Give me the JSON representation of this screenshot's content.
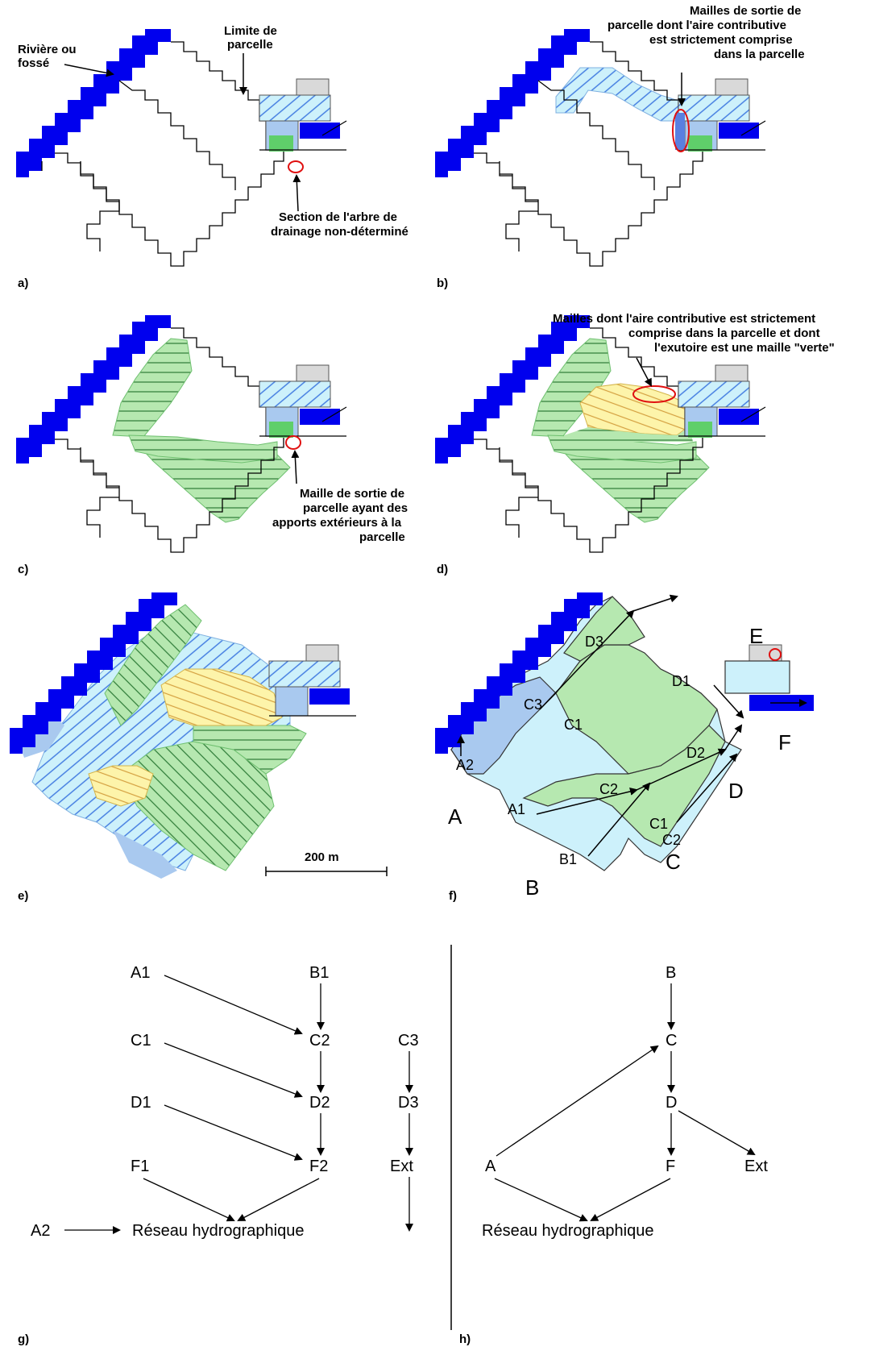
{
  "panel_labels": {
    "a": "a)",
    "b": "b)",
    "c": "c)",
    "d": "d)",
    "e": "e)",
    "f": "f)",
    "g": "g)",
    "h": "h)"
  },
  "annotations": {
    "river_line1": "Rivière ou",
    "river_line2": "fossé",
    "limit_line1": "Limite de",
    "limit_line2": "parcelle",
    "section_line1": "Section de l'arbre de",
    "section_line2": "drainage non-déterminé",
    "exit_line1": "Mailles de sortie de",
    "exit_line2": "parcelle dont l'aire contributive",
    "exit_line3": "est strictement comprise",
    "exit_line4": "dans la parcelle",
    "maille_line1": "Maille de sortie de",
    "maille_line2": "parcelle ayant des",
    "maille_line3": "apports extérieurs à la",
    "maille_line4": "parcelle",
    "d_line1": "Mailles dont l'aire contributive est strictement",
    "d_line2": "comprise dans la parcelle et dont",
    "d_line3": "l'exutoire est une maille \"verte\""
  },
  "scale_bar": "200 m",
  "zones_f": {
    "A": "A",
    "B": "B",
    "C": "C",
    "D": "D",
    "E": "E",
    "F": "F",
    "A1": "A1",
    "A2": "A2",
    "B1": "B1",
    "C1": "C1",
    "C1b": "C1",
    "C2": "C2",
    "C2b": "C2",
    "C3": "C3",
    "D1": "D1",
    "D2": "D2",
    "D3": "D3"
  },
  "graph_g": {
    "A1": "A1",
    "B1": "B1",
    "C1": "C1",
    "C2": "C2",
    "C3": "C3",
    "D1": "D1",
    "D2": "D2",
    "D3": "D3",
    "F1": "F1",
    "F2": "F2",
    "Ext": "Ext",
    "A2": "A2",
    "reseau": "Réseau hydrographique"
  },
  "graph_h": {
    "B": "B",
    "C": "C",
    "D": "D",
    "A": "A",
    "F": "F",
    "Ext": "Ext",
    "reseau": "Réseau hydrographique"
  },
  "colors": {
    "river": "#0000ee",
    "light_blue": "#cdf1fb",
    "green": "#b6e8b0",
    "yellow": "#fdf4aa",
    "med_blue": "#a9c9ef",
    "gray": "#d9d9d9",
    "dark_green": "#5fcf6a",
    "red": "#e01010"
  }
}
